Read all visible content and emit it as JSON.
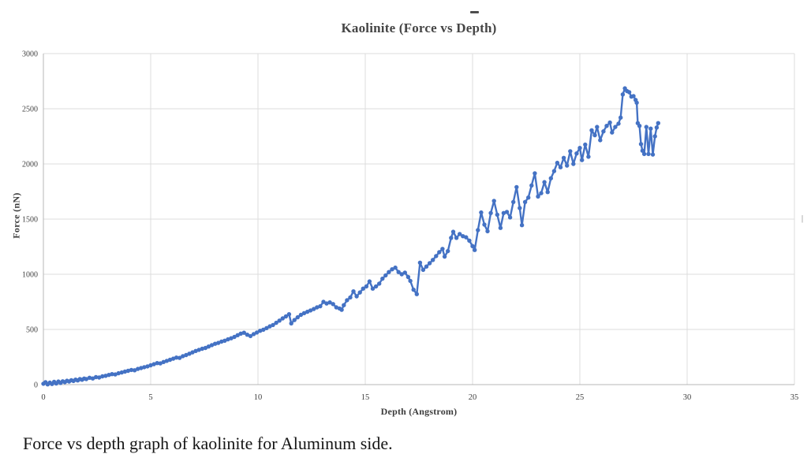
{
  "page": {
    "stray_dash": "-",
    "right_edge_mark": "|",
    "caption": "Force vs depth graph of kaolinite for Aluminum side."
  },
  "chart_data": {
    "type": "scatter",
    "style": "markers+line",
    "title": "Kaolinite (Force vs Depth)",
    "xlabel": "Depth (Angstrom)",
    "ylabel": "Force (nN)",
    "xlim": [
      0,
      35
    ],
    "ylim": [
      0,
      3000
    ],
    "x_ticks": [
      0,
      5,
      10,
      15,
      20,
      25,
      30,
      35
    ],
    "y_ticks": [
      0,
      500,
      1000,
      1500,
      2000,
      2500,
      3000
    ],
    "grid": true,
    "legend_position": "none",
    "series_name": "Force vs Depth",
    "series_color": "#4472C4",
    "gridline_color": "#dcdcdc",
    "axis_color": "#b7b7b7",
    "tick_text_color": "#404040",
    "points": [
      [
        0,
        8
      ],
      [
        0.1,
        22
      ],
      [
        0.2,
        2
      ],
      [
        0.3,
        18
      ],
      [
        0.4,
        6
      ],
      [
        0.5,
        25
      ],
      [
        0.6,
        10
      ],
      [
        0.7,
        28
      ],
      [
        0.8,
        15
      ],
      [
        0.9,
        30
      ],
      [
        1,
        22
      ],
      [
        1.1,
        35
      ],
      [
        1.2,
        28
      ],
      [
        1.3,
        40
      ],
      [
        1.4,
        33
      ],
      [
        1.5,
        45
      ],
      [
        1.6,
        38
      ],
      [
        1.7,
        50
      ],
      [
        1.8,
        44
      ],
      [
        1.9,
        55
      ],
      [
        2,
        50
      ],
      [
        2.15,
        62
      ],
      [
        2.3,
        56
      ],
      [
        2.45,
        68
      ],
      [
        2.6,
        64
      ],
      [
        2.75,
        75
      ],
      [
        2.9,
        80
      ],
      [
        3.05,
        88
      ],
      [
        3.2,
        95
      ],
      [
        3.35,
        92
      ],
      [
        3.5,
        103
      ],
      [
        3.65,
        110
      ],
      [
        3.8,
        118
      ],
      [
        3.95,
        125
      ],
      [
        4.1,
        133
      ],
      [
        4.25,
        130
      ],
      [
        4.4,
        142
      ],
      [
        4.55,
        150
      ],
      [
        4.7,
        158
      ],
      [
        4.85,
        165
      ],
      [
        5,
        175
      ],
      [
        5.15,
        185
      ],
      [
        5.3,
        195
      ],
      [
        5.45,
        192
      ],
      [
        5.6,
        205
      ],
      [
        5.75,
        215
      ],
      [
        5.9,
        225
      ],
      [
        6.05,
        235
      ],
      [
        6.2,
        245
      ],
      [
        6.35,
        242
      ],
      [
        6.5,
        258
      ],
      [
        6.65,
        268
      ],
      [
        6.8,
        280
      ],
      [
        6.95,
        292
      ],
      [
        7.1,
        305
      ],
      [
        7.25,
        315
      ],
      [
        7.4,
        325
      ],
      [
        7.55,
        332
      ],
      [
        7.7,
        345
      ],
      [
        7.85,
        358
      ],
      [
        8,
        370
      ],
      [
        8.15,
        378
      ],
      [
        8.3,
        390
      ],
      [
        8.45,
        398
      ],
      [
        8.6,
        410
      ],
      [
        8.75,
        420
      ],
      [
        8.9,
        432
      ],
      [
        9.05,
        448
      ],
      [
        9.2,
        462
      ],
      [
        9.35,
        470
      ],
      [
        9.5,
        452
      ],
      [
        9.65,
        440
      ],
      [
        9.8,
        458
      ],
      [
        9.95,
        472
      ],
      [
        10.1,
        488
      ],
      [
        10.25,
        498
      ],
      [
        10.4,
        512
      ],
      [
        10.55,
        528
      ],
      [
        10.7,
        540
      ],
      [
        10.85,
        560
      ],
      [
        11,
        580
      ],
      [
        11.15,
        600
      ],
      [
        11.3,
        618
      ],
      [
        11.45,
        638
      ],
      [
        11.55,
        555
      ],
      [
        11.7,
        585
      ],
      [
        11.85,
        610
      ],
      [
        12,
        632
      ],
      [
        12.15,
        648
      ],
      [
        12.3,
        660
      ],
      [
        12.45,
        672
      ],
      [
        12.6,
        685
      ],
      [
        12.75,
        700
      ],
      [
        12.9,
        710
      ],
      [
        13.05,
        750
      ],
      [
        13.2,
        735
      ],
      [
        13.35,
        745
      ],
      [
        13.5,
        730
      ],
      [
        13.65,
        700
      ],
      [
        13.8,
        690
      ],
      [
        13.9,
        678
      ],
      [
        14,
        720
      ],
      [
        14.15,
        765
      ],
      [
        14.3,
        790
      ],
      [
        14.45,
        845
      ],
      [
        14.6,
        800
      ],
      [
        14.75,
        835
      ],
      [
        14.9,
        870
      ],
      [
        15.05,
        890
      ],
      [
        15.2,
        935
      ],
      [
        15.35,
        870
      ],
      [
        15.5,
        890
      ],
      [
        15.65,
        915
      ],
      [
        15.8,
        960
      ],
      [
        15.95,
        990
      ],
      [
        16.1,
        1020
      ],
      [
        16.25,
        1045
      ],
      [
        16.4,
        1060
      ],
      [
        16.55,
        1020
      ],
      [
        16.7,
        1000
      ],
      [
        16.85,
        1015
      ],
      [
        17,
        975
      ],
      [
        17.1,
        940
      ],
      [
        17.25,
        860
      ],
      [
        17.4,
        820
      ],
      [
        17.55,
        1105
      ],
      [
        17.7,
        1040
      ],
      [
        17.85,
        1070
      ],
      [
        18,
        1100
      ],
      [
        18.15,
        1130
      ],
      [
        18.3,
        1165
      ],
      [
        18.45,
        1200
      ],
      [
        18.6,
        1230
      ],
      [
        18.7,
        1160
      ],
      [
        18.85,
        1210
      ],
      [
        19,
        1330
      ],
      [
        19.1,
        1385
      ],
      [
        19.25,
        1330
      ],
      [
        19.4,
        1365
      ],
      [
        19.55,
        1345
      ],
      [
        19.7,
        1335
      ],
      [
        19.85,
        1305
      ],
      [
        20,
        1255
      ],
      [
        20.1,
        1220
      ],
      [
        20.25,
        1400
      ],
      [
        20.4,
        1560
      ],
      [
        20.55,
        1450
      ],
      [
        20.7,
        1390
      ],
      [
        20.85,
        1555
      ],
      [
        21,
        1665
      ],
      [
        21.15,
        1540
      ],
      [
        21.3,
        1420
      ],
      [
        21.45,
        1555
      ],
      [
        21.6,
        1565
      ],
      [
        21.75,
        1515
      ],
      [
        21.9,
        1655
      ],
      [
        22.05,
        1790
      ],
      [
        22.2,
        1600
      ],
      [
        22.3,
        1445
      ],
      [
        22.45,
        1655
      ],
      [
        22.6,
        1695
      ],
      [
        22.75,
        1805
      ],
      [
        22.9,
        1915
      ],
      [
        23.05,
        1705
      ],
      [
        23.2,
        1735
      ],
      [
        23.35,
        1835
      ],
      [
        23.5,
        1745
      ],
      [
        23.65,
        1870
      ],
      [
        23.8,
        1935
      ],
      [
        23.95,
        2010
      ],
      [
        24.1,
        1970
      ],
      [
        24.25,
        2055
      ],
      [
        24.4,
        1985
      ],
      [
        24.55,
        2115
      ],
      [
        24.7,
        2000
      ],
      [
        24.85,
        2095
      ],
      [
        25,
        2145
      ],
      [
        25.1,
        2035
      ],
      [
        25.25,
        2175
      ],
      [
        25.4,
        2065
      ],
      [
        25.55,
        2305
      ],
      [
        25.7,
        2260
      ],
      [
        25.8,
        2335
      ],
      [
        25.95,
        2215
      ],
      [
        26.1,
        2295
      ],
      [
        26.25,
        2345
      ],
      [
        26.4,
        2375
      ],
      [
        26.5,
        2285
      ],
      [
        26.65,
        2335
      ],
      [
        26.8,
        2365
      ],
      [
        26.9,
        2420
      ],
      [
        27,
        2630
      ],
      [
        27.1,
        2685
      ],
      [
        27.2,
        2660
      ],
      [
        27.3,
        2650
      ],
      [
        27.4,
        2610
      ],
      [
        27.5,
        2615
      ],
      [
        27.6,
        2580
      ],
      [
        27.65,
        2555
      ],
      [
        27.7,
        2370
      ],
      [
        27.78,
        2345
      ],
      [
        27.85,
        2180
      ],
      [
        27.92,
        2120
      ],
      [
        28,
        2090
      ],
      [
        28.1,
        2335
      ],
      [
        28.2,
        2090
      ],
      [
        28.3,
        2320
      ],
      [
        28.4,
        2085
      ],
      [
        28.5,
        2250
      ],
      [
        28.58,
        2330
      ],
      [
        28.65,
        2370
      ]
    ]
  }
}
